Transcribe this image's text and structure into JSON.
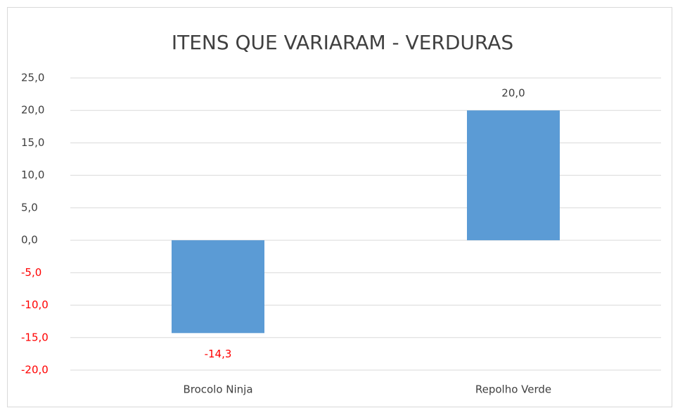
{
  "chart_data": {
    "type": "bar",
    "title": "ITENS QUE VARIARAM - VERDURAS",
    "categories": [
      "Brocolo Ninja",
      "Repolho Verde"
    ],
    "values": [
      -14.3,
      20.0
    ],
    "value_labels": [
      "-14,3",
      "20,0"
    ],
    "color": "#5b9bd5",
    "negative_label_color": "#ff0000",
    "ylim": [
      -20,
      25
    ],
    "yticks": [
      {
        "value": -20,
        "label": "-20,0"
      },
      {
        "value": -15,
        "label": "-15,0"
      },
      {
        "value": -10,
        "label": "-10,0"
      },
      {
        "value": -5,
        "label": "-5,0"
      },
      {
        "value": 0,
        "label": "0,0"
      },
      {
        "value": 5,
        "label": "5,0"
      },
      {
        "value": 10,
        "label": "10,0"
      },
      {
        "value": 15,
        "label": "15,0"
      },
      {
        "value": 20,
        "label": "20,0"
      },
      {
        "value": 25,
        "label": "25,0"
      }
    ],
    "grid": true
  }
}
